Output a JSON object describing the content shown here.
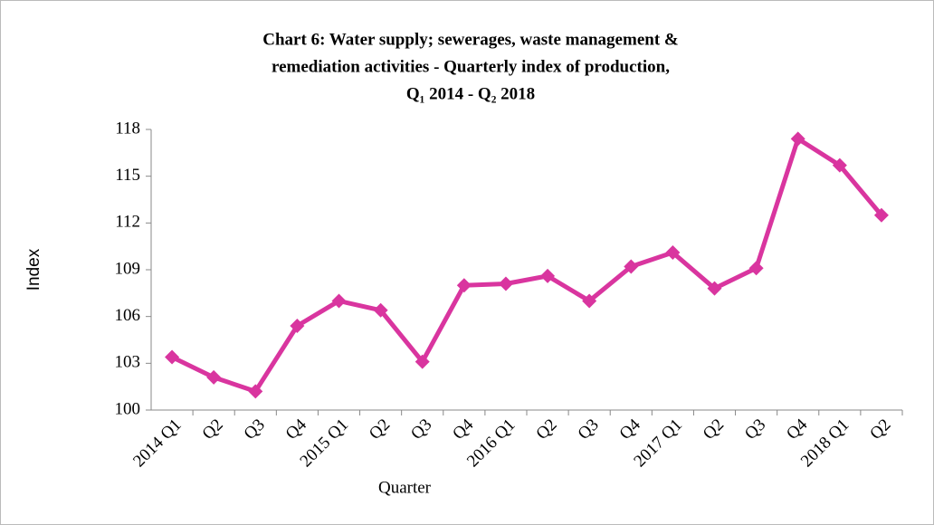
{
  "chart_data": {
    "type": "line",
    "title": [
      "Chart 6: Water supply; sewerages, waste management &",
      "remediation activities - Quarterly index of production,",
      "Q₁ 2014 - Q₂ 2018"
    ],
    "x_label": "Quarter",
    "y_label": "Index",
    "categories": [
      "2014 Q1",
      "Q2",
      "Q3",
      "Q4",
      "2015 Q1",
      "Q2",
      "Q3",
      "Q4",
      "2016 Q1",
      "Q2",
      "Q3",
      "Q4",
      "2017 Q1",
      "Q2",
      "Q3",
      "Q4",
      "2018 Q1",
      "Q2"
    ],
    "series": [
      {
        "color": "#d9359f",
        "values": [
          103.4,
          102.1,
          101.2,
          105.4,
          107.0,
          106.4,
          103.1,
          108.0,
          108.1,
          108.6,
          107.0,
          109.2,
          110.1,
          107.8,
          109.1,
          117.4,
          115.7,
          112.5
        ]
      }
    ],
    "ylim": [
      100,
      118
    ],
    "yticks": [
      100,
      103,
      106,
      109,
      112,
      115,
      118
    ]
  }
}
